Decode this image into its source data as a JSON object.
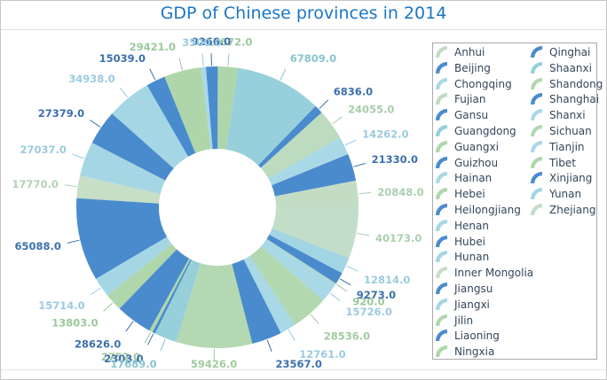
{
  "title": {
    "text": "GDP of Chinese provinces in 2014",
    "color": "#1b76c5"
  },
  "legend": {
    "position": "right",
    "columns": 2,
    "items_in_first_column": 20,
    "text_color": "#33465a",
    "border_color": "#a9a9a9"
  },
  "chart_data": {
    "type": "pie",
    "subtype": "donut",
    "title": "GDP of Chinese provinces in 2014",
    "direction": "counterclockwise",
    "start_angle_deg": 0,
    "legend_position": "right",
    "slices": [
      {
        "name": "Anhui",
        "value": 20848.0,
        "label": "20848.0",
        "color": "#c3ddc5",
        "label_color": "#aacfae"
      },
      {
        "name": "Beijing",
        "value": 21330.0,
        "label": "21330.0",
        "color": "#4a8bce",
        "label_color": "#3c70ad"
      },
      {
        "name": "Chongqing",
        "value": 14262.0,
        "label": "14262.0",
        "color": "#a9d8e6",
        "label_color": "#9ccadf"
      },
      {
        "name": "Fujian",
        "value": 24055.0,
        "label": "24055.0",
        "color": "#bcdbbf",
        "label_color": "#a8cdaa"
      },
      {
        "name": "Gansu",
        "value": 6836.0,
        "label": "6836.0",
        "color": "#4a8bce",
        "label_color": "#3c70ad"
      },
      {
        "name": "Guangdong",
        "value": 67809.0,
        "label": "67809.0",
        "color": "#97d0da",
        "label_color": "#89c4cf"
      },
      {
        "name": "Guangxi",
        "value": 15672.0,
        "label": "15672.0",
        "color": "#aed6aa",
        "label_color": "#9cc89b"
      },
      {
        "name": "Guizhou",
        "value": 9266.0,
        "label": "9266.0",
        "color": "#4a8bce",
        "label_color": "#3c70ad"
      },
      {
        "name": "Hainan",
        "value": 3500.0,
        "label": "3500.0",
        "color": "#a9d8e6",
        "label_color": "#9ccadf"
      },
      {
        "name": "Hebei",
        "value": 29421.0,
        "label": "29421.0",
        "color": "#aed6aa",
        "label_color": "#9cc89b"
      },
      {
        "name": "Heilongjiang",
        "value": 15039.0,
        "label": "15039.0",
        "color": "#4a8bce",
        "label_color": "#3c70ad"
      },
      {
        "name": "Henan",
        "value": 34938.0,
        "label": "34938.0",
        "color": "#a5d6e4",
        "label_color": "#9ccadf"
      },
      {
        "name": "Hubei",
        "value": 27379.0,
        "label": "27379.0",
        "color": "#4a8bce",
        "label_color": "#3c70ad"
      },
      {
        "name": "Hunan",
        "value": 27037.0,
        "label": "27037.0",
        "color": "#a5d6e4",
        "label_color": "#9ccadf"
      },
      {
        "name": "Inner Mongolia",
        "value": 17770.0,
        "label": "17770.0",
        "color": "#c6dfc6",
        "label_color": "#b2d2b6"
      },
      {
        "name": "Jiangsu",
        "value": 65088.0,
        "label": "65088.0",
        "color": "#4a8bce",
        "label_color": "#3c70ad"
      },
      {
        "name": "Jiangxi",
        "value": 15714.0,
        "label": "15714.0",
        "color": "#a5d6e4",
        "label_color": "#9ccadf"
      },
      {
        "name": "Jilin",
        "value": 13803.0,
        "label": "13803.0",
        "color": "#b0d7ac",
        "label_color": "#9cc89b"
      },
      {
        "name": "Liaoning",
        "value": 28626.0,
        "label": "28626.0",
        "color": "#4a8bce",
        "label_color": "#3c70ad"
      },
      {
        "name": "Ningxia",
        "value": 2752.0,
        "label": "2752.0",
        "color": "#aed6aa",
        "label_color": "#9cc89b"
      },
      {
        "name": "Qinghai",
        "value": 2303.0,
        "label": "2303.0",
        "color": "#4a8bce",
        "label_color": "#3c70ad"
      },
      {
        "name": "Shaanxi",
        "value": 17689.0,
        "label": "17689.0",
        "color": "#97d0da",
        "label_color": "#89c4cf"
      },
      {
        "name": "Shandong",
        "value": 59426.0,
        "label": "59426.0",
        "color": "#b4d8b1",
        "label_color": "#a2cba0"
      },
      {
        "name": "Shanghai",
        "value": 23567.0,
        "label": "23567.0",
        "color": "#4a8bce",
        "label_color": "#3c70ad"
      },
      {
        "name": "Shanxi",
        "value": 12761.0,
        "label": "12761.0",
        "color": "#a9d8e6",
        "label_color": "#9ccadf"
      },
      {
        "name": "Sichuan",
        "value": 28536.0,
        "label": "28536.0",
        "color": "#b2d8af",
        "label_color": "#a2cba0"
      },
      {
        "name": "Tianjin",
        "value": 15726.0,
        "label": "15726.0",
        "color": "#a9d8e6",
        "label_color": "#9ccadf"
      },
      {
        "name": "Tibet",
        "value": 920.0,
        "label": "920.0",
        "color": "#aed6aa",
        "label_color": "#9cc89b"
      },
      {
        "name": "Xinjiang",
        "value": 9273.0,
        "label": "9273.0",
        "color": "#4a8bce",
        "label_color": "#3c70ad"
      },
      {
        "name": "Yunan",
        "value": 12814.0,
        "label": "12814.0",
        "color": "#a2d5e4",
        "label_color": "#9ccadf"
      },
      {
        "name": "Zhejiang",
        "value": 40173.0,
        "label": "40173.0",
        "color": "#c2ddc8",
        "label_color": "#aacfae"
      }
    ]
  }
}
